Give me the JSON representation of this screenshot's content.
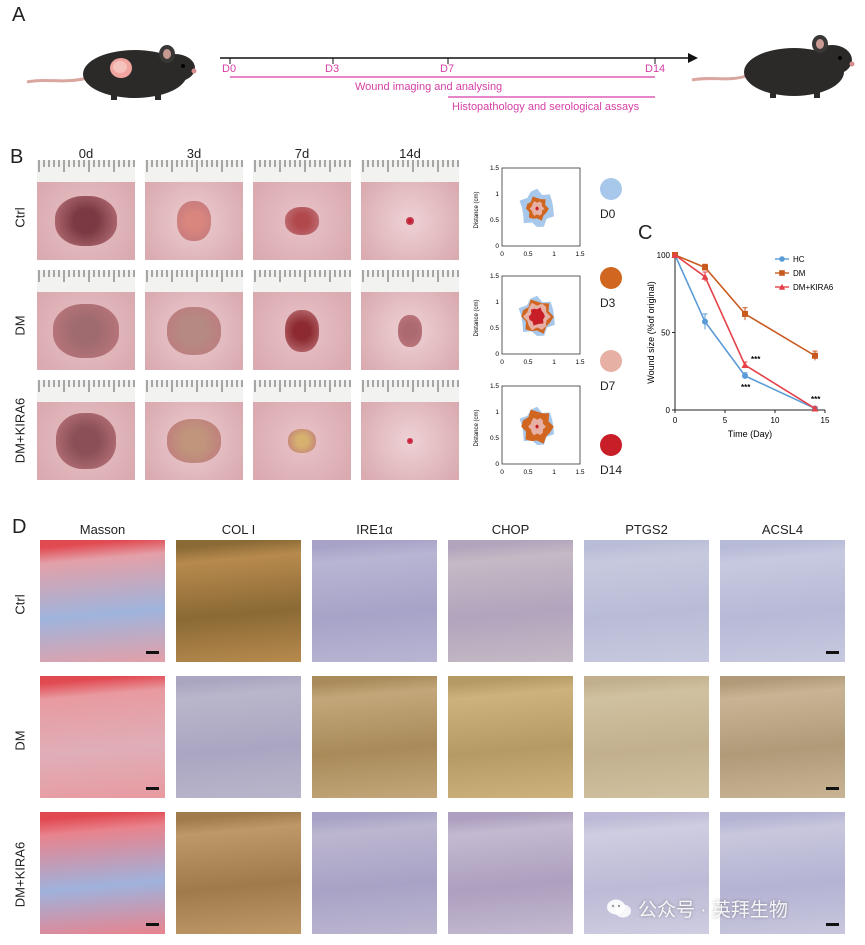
{
  "panels": {
    "a": "A",
    "b": "B",
    "c": "C",
    "d": "D"
  },
  "timeline": {
    "ticks": [
      "D0",
      "D3",
      "D7",
      "D14"
    ],
    "bar1_label": "Wound imaging and analysing",
    "bar2_label": "Histopathology and serological assays",
    "accent": "#d63fa6"
  },
  "panel_b": {
    "col_labels": [
      "0d",
      "3d",
      "7d",
      "14d"
    ],
    "row_labels": [
      "Ctrl",
      "DM",
      "DM+KIRA6"
    ],
    "day_legend": [
      "D0",
      "D3",
      "D7",
      "D14"
    ],
    "day_colors": [
      "#a7c8ea",
      "#d0661f",
      "#e7b0a4",
      "#c81e28"
    ],
    "mini_axis": {
      "ylabel": "Distance (cm)",
      "xticks": [
        "0",
        "0.5",
        "1",
        "1.5"
      ],
      "yticks": [
        "0",
        "0.5",
        "1",
        "1.5"
      ]
    }
  },
  "panel_d": {
    "col_labels": [
      "Masson",
      "COL I",
      "IRE1α",
      "CHOP",
      "PTGS2",
      "ACSL4"
    ],
    "row_labels": [
      "Ctrl",
      "DM",
      "DM+KIRA6"
    ]
  },
  "watermark": {
    "icon": "wechat-icon",
    "text": "公众号 · 英拜生物"
  },
  "chart_data": {
    "type": "line",
    "title": "",
    "xlabel": "Time (Day)",
    "ylabel": "Wound size (%of original)",
    "xlim": [
      0,
      15
    ],
    "ylim": [
      0,
      100
    ],
    "xticks": [
      0,
      5,
      10,
      15
    ],
    "yticks": [
      0,
      50,
      100
    ],
    "legend_position": "top-right",
    "x": [
      0,
      3,
      7,
      14
    ],
    "series": [
      {
        "name": "HC",
        "color": "#5b9bd5",
        "marker": "circle",
        "values": [
          100,
          57,
          22,
          1
        ],
        "errors": [
          0,
          5,
          2,
          1
        ]
      },
      {
        "name": "DM",
        "color": "#c85a1e",
        "marker": "square",
        "values": [
          100,
          92,
          62,
          35
        ],
        "errors": [
          0,
          2,
          4,
          3
        ]
      },
      {
        "name": "DM+KIRA6",
        "color": "#e5414a",
        "marker": "triangle",
        "values": [
          100,
          86,
          29,
          1
        ],
        "errors": [
          0,
          3,
          2,
          1
        ]
      }
    ],
    "annotations": [
      {
        "x": 7,
        "y": 29,
        "text": "***"
      },
      {
        "x": 7,
        "y": 22,
        "text": "***"
      },
      {
        "x": 14,
        "y": 2,
        "text": "***"
      }
    ]
  }
}
